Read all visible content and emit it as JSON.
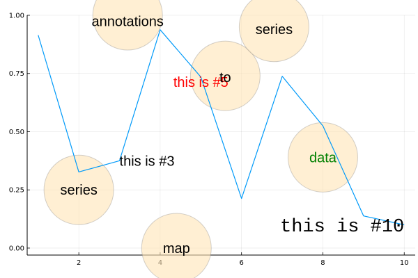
{
  "chart_data": {
    "type": "line",
    "x": [
      1,
      2,
      3,
      4,
      5,
      6,
      7,
      8,
      9,
      10
    ],
    "series": [
      {
        "values": [
          0.915,
          0.327,
          0.375,
          0.938,
          0.735,
          0.213,
          0.738,
          0.525,
          0.138,
          0.1
        ],
        "color": "#009af9"
      }
    ],
    "xlim": [
      0.73,
      10.27
    ],
    "ylim": [
      -0.03,
      1.0
    ],
    "xticks": [
      2,
      4,
      6,
      8,
      10
    ],
    "yticks": [
      0.0,
      0.25,
      0.5,
      0.75,
      1.0
    ],
    "xtick_labels": [
      "2",
      "4",
      "6",
      "8",
      "10"
    ],
    "ytick_labels": [
      "0.00",
      "0.25",
      "0.50",
      "0.75",
      "1.00"
    ],
    "grid": true,
    "legend": "none",
    "markers": {
      "x": [
        2,
        3.2,
        4.4,
        5.6,
        6.8,
        8
      ],
      "y": [
        0.25,
        1.0,
        0.0,
        0.74,
        0.95,
        0.39
      ],
      "color": "#ffe4b5",
      "opacity": 0.6
    },
    "annotations": [
      {
        "text": "series",
        "x": 2,
        "y": 0.25,
        "color": "#000000",
        "font": "sans",
        "size": "large",
        "anchor": "middle"
      },
      {
        "text": "annotations",
        "x": 3.2,
        "y": 0.975,
        "color": "#000000",
        "font": "sans",
        "size": "large",
        "anchor": "middle"
      },
      {
        "text": "this is #3",
        "x": 3,
        "y": 0.375,
        "color": "#000000",
        "font": "sans",
        "size": "large",
        "anchor": "start"
      },
      {
        "text": "map",
        "x": 4.4,
        "y": 0.0,
        "color": "#000000",
        "font": "sans",
        "size": "large",
        "anchor": "middle"
      },
      {
        "text": "this is #5",
        "x": 5,
        "y": 0.714,
        "color": "#ff0000",
        "font": "sans",
        "size": "large",
        "anchor": "middle"
      },
      {
        "text": "to",
        "x": 5.6,
        "y": 0.735,
        "color": "#000000",
        "font": "sans",
        "size": "large",
        "anchor": "middle"
      },
      {
        "text": "series",
        "x": 6.8,
        "y": 0.94,
        "color": "#000000",
        "font": "sans",
        "size": "large",
        "anchor": "middle"
      },
      {
        "text": "data",
        "x": 8,
        "y": 0.39,
        "color": "#008000",
        "font": "sans",
        "size": "large",
        "anchor": "middle"
      },
      {
        "text": "this is #10",
        "x": 10,
        "y": 0.1,
        "color": "#000000",
        "font": "mono",
        "size": "xlarge",
        "anchor": "end"
      }
    ]
  }
}
